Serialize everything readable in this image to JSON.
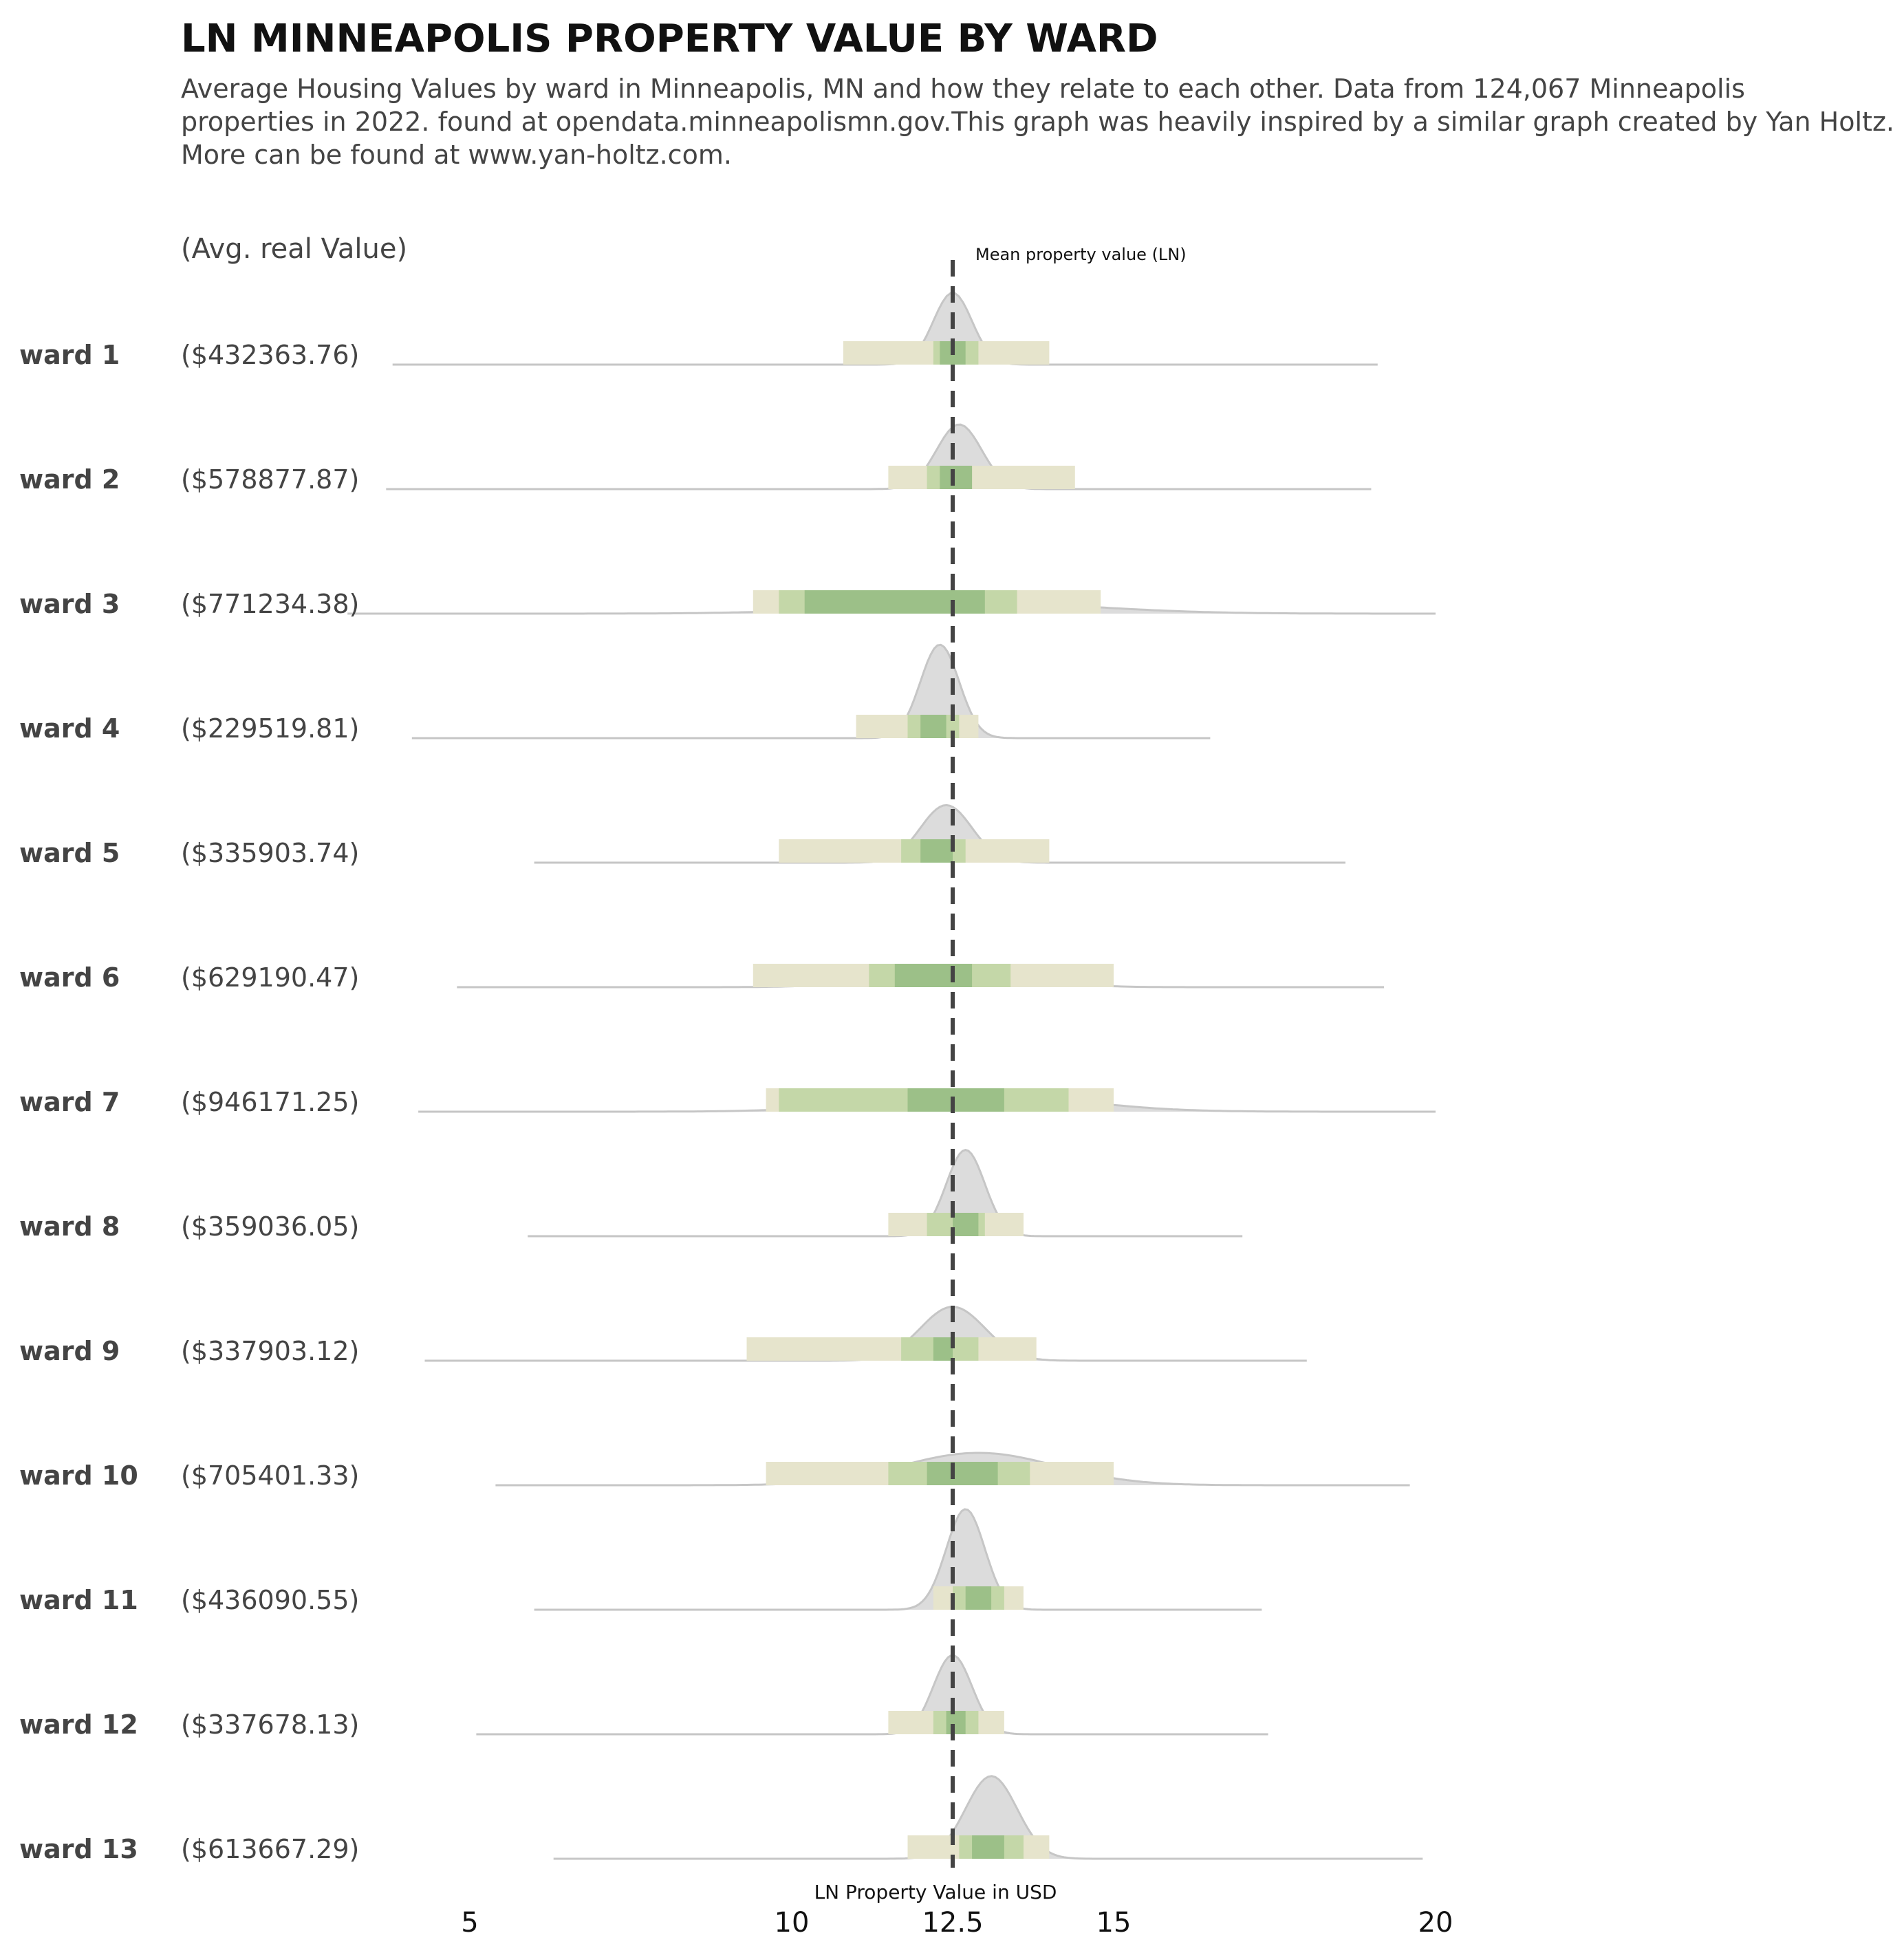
{
  "chart_data": {
    "type": "ridgeline",
    "title": "LN MINNEAPOLIS PROPERTY VALUE BY WARD",
    "subtitle_lines": [
      "Average Housing Values by ward in Minneapolis, MN and how they relate to each other. Data from 124,067 Minneapolis",
      "properties in 2022. found at opendata.minneapolismn.gov.This graph was heavily inspired by a similar graph created by Yan Holtz.",
      "More can be found at www.yan-holtz.com."
    ],
    "avg_header": "(Avg. real Value)",
    "xlabel": "LN Property Value in USD",
    "xlim": [
      5,
      20
    ],
    "xticks": [
      5,
      10,
      12.5,
      15,
      20
    ],
    "xtick_labels": [
      "5",
      "10",
      "12.5",
      "15",
      "20"
    ],
    "mean_line": {
      "value": 12.5,
      "label": "Mean property value (LN)"
    },
    "colors": {
      "density_fill": "#dcdcdc",
      "density_stroke": "#c6c6c6",
      "band_outer": "#e6e4cc",
      "band_mid": "#c4d7a8",
      "band_inner": "#9cc088",
      "mean_line": "#444444"
    },
    "series": [
      {
        "name": "ward 1",
        "avg_value": "($432363.76)",
        "range": [
          3.8,
          19.1
        ],
        "peak": 12.5,
        "sd": 0.3,
        "height": 1.0,
        "intervals": {
          "outer": [
            10.8,
            14.0
          ],
          "mid": [
            12.2,
            12.9
          ],
          "inner": [
            12.3,
            12.7
          ]
        }
      },
      {
        "name": "ward 2",
        "avg_value": "($578877.87)",
        "range": [
          3.7,
          19.0
        ],
        "peak": 12.6,
        "sd": 0.35,
        "height": 0.9,
        "intervals": {
          "outer": [
            11.5,
            14.4
          ],
          "mid": [
            12.1,
            12.8
          ],
          "inner": [
            12.3,
            12.8
          ]
        }
      },
      {
        "name": "ward 3",
        "avg_value": "($771234.38)",
        "range": [
          3.1,
          20.0
        ],
        "peak": 12.9,
        "sd": 1.8,
        "height": 0.15,
        "intervals": {
          "outer": [
            9.4,
            14.8
          ],
          "mid": [
            9.8,
            13.5
          ],
          "inner": [
            10.2,
            13.0
          ]
        }
      },
      {
        "name": "ward 4",
        "avg_value": "($229519.81)",
        "range": [
          4.1,
          16.5
        ],
        "peak": 12.3,
        "sd": 0.3,
        "height": 1.3,
        "intervals": {
          "outer": [
            11.0,
            12.9
          ],
          "mid": [
            11.8,
            12.6
          ],
          "inner": [
            12.0,
            12.4
          ]
        }
      },
      {
        "name": "ward 5",
        "avg_value": "($335903.74)",
        "range": [
          6.0,
          18.6
        ],
        "peak": 12.4,
        "sd": 0.4,
        "height": 0.8,
        "intervals": {
          "outer": [
            9.8,
            14.0
          ],
          "mid": [
            11.7,
            12.7
          ],
          "inner": [
            12.0,
            12.5
          ]
        }
      },
      {
        "name": "ward 6",
        "avg_value": "($629190.47)",
        "range": [
          4.8,
          19.2
        ],
        "peak": 12.5,
        "sd": 1.0,
        "height": 0.3,
        "intervals": {
          "outer": [
            9.4,
            15.0
          ],
          "mid": [
            11.2,
            13.4
          ],
          "inner": [
            11.6,
            12.8
          ]
        }
      },
      {
        "name": "ward 7",
        "avg_value": "($946171.25)",
        "range": [
          4.2,
          20.0
        ],
        "peak": 12.9,
        "sd": 1.5,
        "height": 0.25,
        "intervals": {
          "outer": [
            9.6,
            15.0
          ],
          "mid": [
            9.8,
            14.3
          ],
          "inner": [
            11.8,
            13.3
          ]
        }
      },
      {
        "name": "ward 8",
        "avg_value": "($359036.05)",
        "range": [
          5.9,
          17.0
        ],
        "peak": 12.7,
        "sd": 0.3,
        "height": 1.2,
        "intervals": {
          "outer": [
            11.5,
            13.6
          ],
          "mid": [
            12.1,
            13.0
          ],
          "inner": [
            12.5,
            12.9
          ]
        }
      },
      {
        "name": "ward 9",
        "avg_value": "($337903.12)",
        "range": [
          4.3,
          18.0
        ],
        "peak": 12.5,
        "sd": 0.5,
        "height": 0.75,
        "intervals": {
          "outer": [
            9.3,
            13.8
          ],
          "mid": [
            11.7,
            12.9
          ],
          "inner": [
            12.2,
            12.5
          ]
        }
      },
      {
        "name": "ward 10",
        "avg_value": "($705401.33)",
        "range": [
          5.4,
          19.6
        ],
        "peak": 12.9,
        "sd": 1.2,
        "height": 0.45,
        "intervals": {
          "outer": [
            9.6,
            15.0
          ],
          "mid": [
            11.5,
            13.7
          ],
          "inner": [
            12.1,
            13.2
          ]
        }
      },
      {
        "name": "ward 11",
        "avg_value": "($436090.55)",
        "range": [
          6.0,
          17.3
        ],
        "peak": 12.7,
        "sd": 0.3,
        "height": 1.4,
        "intervals": {
          "outer": [
            12.2,
            13.6
          ],
          "mid": [
            12.5,
            13.3
          ],
          "inner": [
            12.7,
            13.1
          ]
        }
      },
      {
        "name": "ward 12",
        "avg_value": "($337678.13)",
        "range": [
          5.1,
          17.4
        ],
        "peak": 12.5,
        "sd": 0.3,
        "height": 1.1,
        "intervals": {
          "outer": [
            11.5,
            13.3
          ],
          "mid": [
            12.2,
            12.9
          ],
          "inner": [
            12.4,
            12.7
          ]
        }
      },
      {
        "name": "ward 13",
        "avg_value": "($613667.29)",
        "range": [
          6.3,
          19.8
        ],
        "peak": 13.1,
        "sd": 0.4,
        "height": 1.15,
        "intervals": {
          "outer": [
            11.8,
            14.0
          ],
          "mid": [
            12.6,
            13.6
          ],
          "inner": [
            12.8,
            13.3
          ]
        }
      }
    ]
  }
}
